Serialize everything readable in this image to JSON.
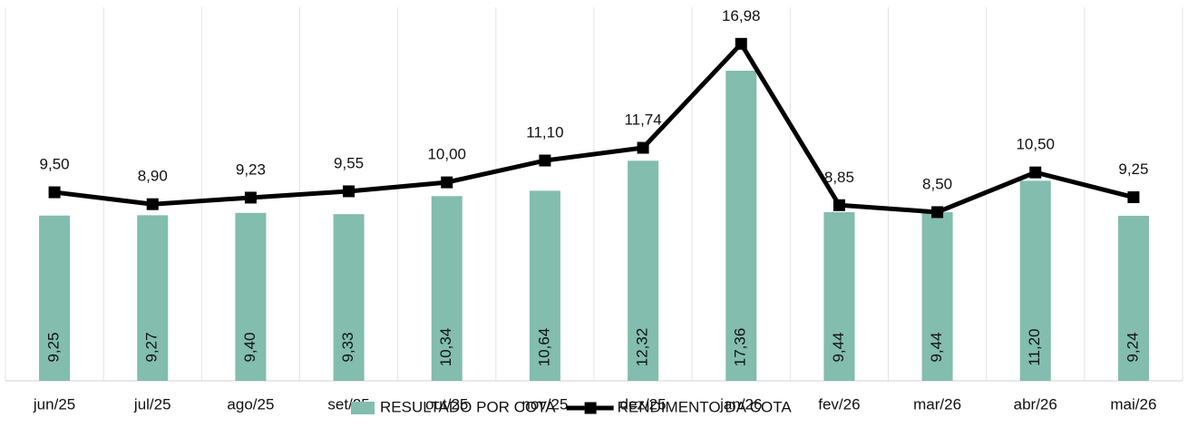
{
  "chart_data": {
    "type": "combo",
    "categories": [
      "jun/25",
      "jul/25",
      "ago/25",
      "set/25",
      "out/25",
      "nov/25",
      "dez/25",
      "jan/26",
      "fev/26",
      "mar/26",
      "abr/26",
      "mai/26"
    ],
    "series": [
      {
        "name": "RESULTADO POR COTA",
        "type": "bar",
        "color": "#82bdae",
        "values": [
          9.25,
          9.27,
          9.4,
          9.33,
          10.34,
          10.64,
          12.32,
          17.36,
          9.44,
          9.44,
          11.2,
          9.24
        ],
        "value_labels": [
          "9,25",
          "9,27",
          "9,40",
          "9,33",
          "10,34",
          "10,64",
          "12,32",
          "17,36",
          "9,44",
          "9,44",
          "11,20",
          "9,24"
        ]
      },
      {
        "name": "RENDIMENTO DA COTA",
        "type": "line",
        "axis": "y2",
        "color": "#000000",
        "values": [
          9.5,
          8.9,
          9.23,
          9.55,
          10.0,
          11.1,
          11.74,
          16.98,
          8.85,
          8.5,
          10.5,
          9.25
        ],
        "value_labels": [
          "9,50",
          "8,90",
          "9,23",
          "9,55",
          "10,00",
          "11,10",
          "11,74",
          "16,98",
          "8,85",
          "8,50",
          "10,50",
          "9,25"
        ]
      }
    ],
    "ylim": [
      0,
      20
    ],
    "y2lim": [
      0,
      18
    ],
    "legend": "bottom"
  }
}
